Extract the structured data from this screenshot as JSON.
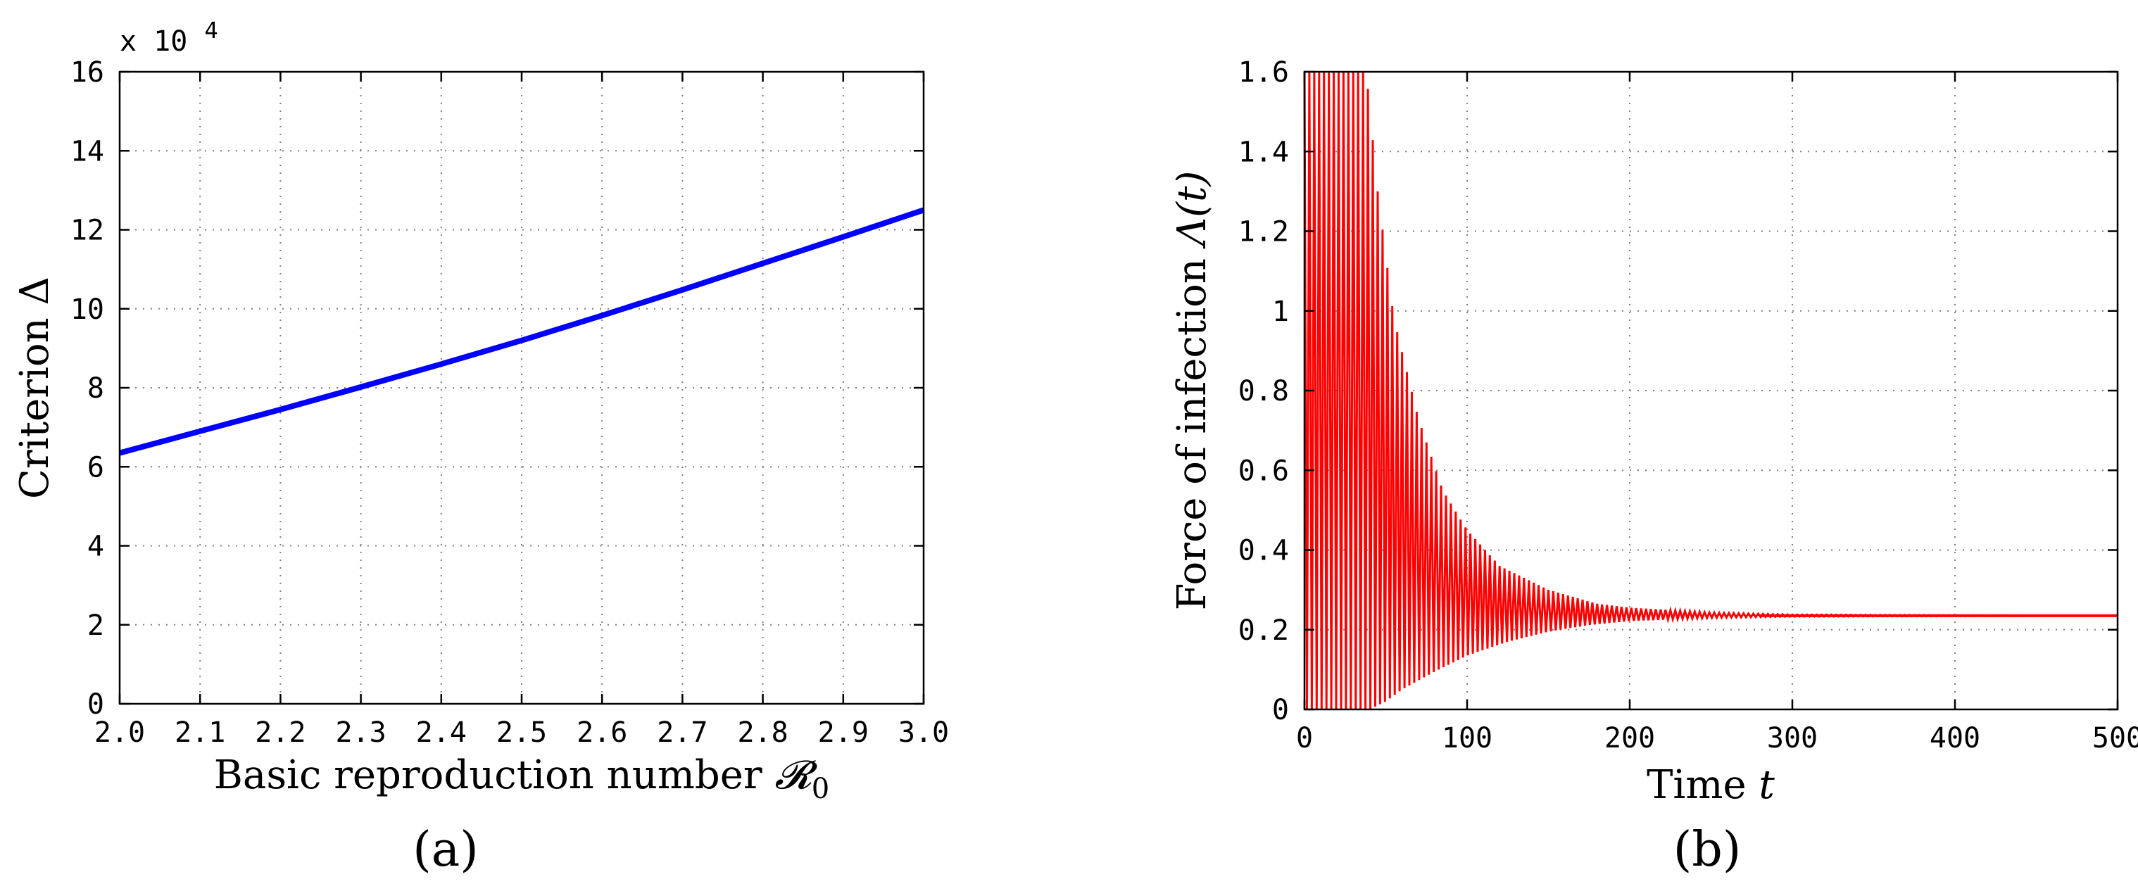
{
  "chart_data": [
    {
      "type": "line",
      "panel_label": "(a)",
      "exponent_label": "x 10",
      "exponent_power": "4",
      "xlabel_text": "Basic reproduction number ",
      "xlabel_symbol": "𝓡",
      "xlabel_subscript": "0",
      "ylabel": "Criterion Δ",
      "xlim": [
        2.0,
        3.0
      ],
      "ylim": [
        0,
        16
      ],
      "x_ticks": [
        "2.0",
        "2.1",
        "2.2",
        "2.3",
        "2.4",
        "2.5",
        "2.6",
        "2.7",
        "2.8",
        "2.9",
        "3.0"
      ],
      "y_ticks": [
        "0",
        "2",
        "4",
        "6",
        "8",
        "10",
        "12",
        "14",
        "16"
      ],
      "grid": true,
      "series": [
        {
          "color": "#0000ff",
          "x": [
            2.0,
            2.1,
            2.2,
            2.3,
            2.4,
            2.5,
            2.6,
            2.7,
            2.8,
            2.9,
            3.0
          ],
          "y": [
            6.35,
            6.9,
            7.45,
            8.02,
            8.6,
            9.2,
            9.83,
            10.48,
            11.15,
            11.82,
            12.5
          ]
        }
      ]
    },
    {
      "type": "line",
      "panel_label": "(b)",
      "xlabel_text": "Time ",
      "xlabel_symbol": "t",
      "ylabel_text": "Force of infection ",
      "ylabel_symbol": "Λ(t)",
      "xlim": [
        0,
        500
      ],
      "ylim": [
        0,
        1.6
      ],
      "x_ticks": [
        "0",
        "100",
        "200",
        "300",
        "400",
        "500"
      ],
      "y_ticks": [
        "0",
        "0.2",
        "0.4",
        "0.6",
        "0.8",
        "1",
        "1.2",
        "1.4",
        "1.6"
      ],
      "grid": true,
      "series": [
        {
          "color": "#ff0000",
          "oscillation_period": 3,
          "equilibrium": 0.235,
          "upper_envelope": {
            "x": [
              0,
              38,
              45,
              55,
              70,
              85,
              100,
              120,
              150,
              180,
              200,
              250,
              300,
              500
            ],
            "y": [
              1.6,
              1.6,
              1.3,
              0.98,
              0.73,
              0.55,
              0.45,
              0.36,
              0.3,
              0.265,
              0.255,
              0.243,
              0.238,
              0.235
            ]
          },
          "lower_envelope": {
            "x": [
              0,
              40,
              50,
              60,
              80,
              100,
              125,
              150,
              175,
              200,
              250,
              300,
              500
            ],
            "y": [
              0,
              0,
              0.02,
              0.05,
              0.095,
              0.135,
              0.17,
              0.195,
              0.212,
              0.222,
              0.23,
              0.233,
              0.235
            ]
          }
        }
      ]
    }
  ]
}
